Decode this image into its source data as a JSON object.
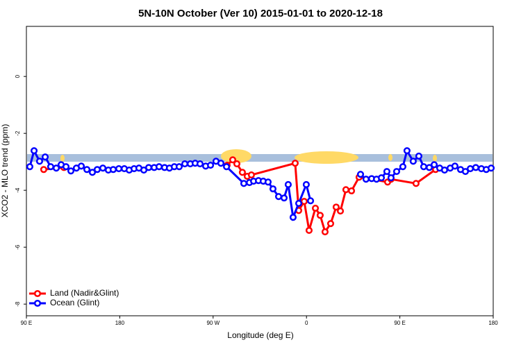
{
  "chart_data": {
    "type": "line",
    "title": "5N-10N October (Ver 10)   2015-01-01 to 2020-12-18",
    "x_label": "Longitude (deg E)",
    "y_label": "XCO2 - MLO trend (ppm)",
    "xlim": [
      90,
      540
    ],
    "xticks": [
      {
        "value": 90,
        "label": "90 E"
      },
      {
        "value": 180,
        "label": "180"
      },
      {
        "value": 270,
        "label": "90 W"
      },
      {
        "value": 360,
        "label": "0"
      },
      {
        "value": 450,
        "label": "90 E"
      },
      {
        "value": 540,
        "label": "180"
      }
    ],
    "ylim": [
      -8.41,
      1.76
    ],
    "yticks": [
      0,
      -2,
      -4,
      -6,
      -8
    ],
    "legend": "bottom-left",
    "series": [
      {
        "name": "Land (Nadir&Glint)",
        "color": "#ff0000",
        "x": [
          106.7,
          126.2,
          278.8,
          283.5,
          288.9,
          292.9,
          298.2,
          302.9,
          306.9,
          349.1,
          352.5,
          357.8,
          362.5,
          368.6,
          373.2,
          377.9,
          383.3,
          388.6,
          392.7,
          398.0,
          403.4,
          410.7,
          438.2,
          441.5,
          465.6,
          484.4
        ],
        "values": [
          -3.27,
          -3.2,
          null,
          -3.12,
          -2.93,
          -3.07,
          -3.37,
          -3.51,
          -3.46,
          -3.05,
          -4.71,
          -4.39,
          -5.41,
          -4.63,
          -4.88,
          -5.46,
          -5.17,
          -4.59,
          -4.73,
          -3.98,
          -4.02,
          -3.54,
          -3.71,
          -3.61,
          -3.76,
          -3.27
        ]
      },
      {
        "name": "Ocean (Glint)",
        "color": "#0000ff",
        "x": [
          93.3,
          97.4,
          102.7,
          108.1,
          113.4,
          118.8,
          123.5,
          128.2,
          132.9,
          138.2,
          142.9,
          148.3,
          153.6,
          158.3,
          163.7,
          169.0,
          173.7,
          179.1,
          184.4,
          189.1,
          193.8,
          198.5,
          203.2,
          207.9,
          213.2,
          217.9,
          223.2,
          227.9,
          232.6,
          237.3,
          242.7,
          248.0,
          252.7,
          257.4,
          262.8,
          267.5,
          272.8,
          277.5,
          282.9,
          299.6,
          305.0,
          309.0,
          313.7,
          318.3,
          323.0,
          327.7,
          333.1,
          338.4,
          342.4,
          347.1,
          352.5,
          359.8,
          363.9,
          407.4,
          412.1,
          417.4,
          422.8,
          427.5,
          432.2,
          437.5,
          441.5,
          446.9,
          452.9,
          456.9,
          462.9,
          468.3,
          473.0,
          478.4,
          483.1,
          488.4,
          493.1,
          498.5,
          503.1,
          508.5,
          513.2,
          517.9,
          523.2,
          528.6,
          533.3,
          538.0
        ],
        "values": [
          -3.17,
          -2.61,
          -2.98,
          -2.83,
          -3.17,
          -3.22,
          -3.1,
          -3.17,
          -3.32,
          -3.22,
          -3.15,
          -3.27,
          -3.37,
          -3.27,
          -3.22,
          -3.29,
          -3.27,
          -3.24,
          -3.24,
          -3.29,
          -3.24,
          -3.22,
          -3.29,
          -3.2,
          -3.2,
          -3.17,
          -3.2,
          -3.22,
          -3.17,
          -3.17,
          -3.07,
          -3.07,
          -3.05,
          -3.07,
          -3.15,
          -3.12,
          -2.98,
          -3.05,
          -3.17,
          -3.76,
          -3.73,
          -3.68,
          -3.66,
          -3.68,
          -3.71,
          -3.95,
          -4.22,
          -4.27,
          -3.8,
          -4.95,
          -4.46,
          -3.8,
          -4.37,
          null,
          -3.44,
          -3.61,
          -3.59,
          -3.61,
          -3.56,
          -3.34,
          -3.56,
          -3.34,
          -3.17,
          -2.61,
          -2.98,
          -2.8,
          -3.17,
          -3.2,
          -3.1,
          -3.22,
          -3.29,
          -3.22,
          -3.15,
          -3.27,
          -3.34,
          -3.24,
          -3.2,
          -3.24,
          -3.27,
          -3.22
        ]
      }
    ]
  }
}
